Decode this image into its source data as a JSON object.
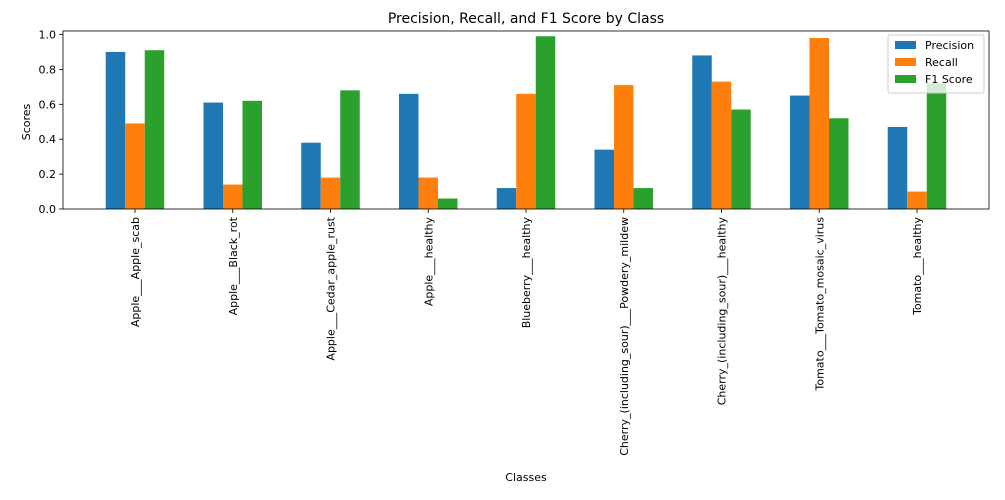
{
  "chart_data": {
    "type": "bar",
    "title": "Precision, Recall, and F1 Score by Class",
    "xlabel": "Classes",
    "ylabel": "Scores",
    "ylim": [
      0,
      1.02
    ],
    "yticks": [
      "0.0",
      "0.2",
      "0.4",
      "0.6",
      "0.8",
      "1.0"
    ],
    "grid": false,
    "legend_position": "top-right",
    "categories": [
      "Apple___Apple_scab",
      "Apple___Black_rot",
      "Apple___Cedar_apple_rust",
      "Apple___healthy",
      "Blueberry___healthy",
      "Cherry_(including_sour)___Powdery_mildew",
      "Cherry_(including_sour)___healthy",
      "Tomato___Tomato_mosaic_virus",
      "Tomato___healthy"
    ],
    "series": [
      {
        "name": "Precision",
        "color": "#1f77b4",
        "values": [
          0.9,
          0.61,
          0.38,
          0.66,
          0.12,
          0.34,
          0.88,
          0.65,
          0.47
        ]
      },
      {
        "name": "Recall",
        "color": "#ff7f0e",
        "values": [
          0.49,
          0.14,
          0.18,
          0.18,
          0.66,
          0.71,
          0.73,
          0.98,
          0.1
        ]
      },
      {
        "name": "F1 Score",
        "color": "#2ca02c",
        "values": [
          0.91,
          0.62,
          0.68,
          0.06,
          0.99,
          0.12,
          0.57,
          0.52,
          0.72
        ]
      }
    ]
  }
}
